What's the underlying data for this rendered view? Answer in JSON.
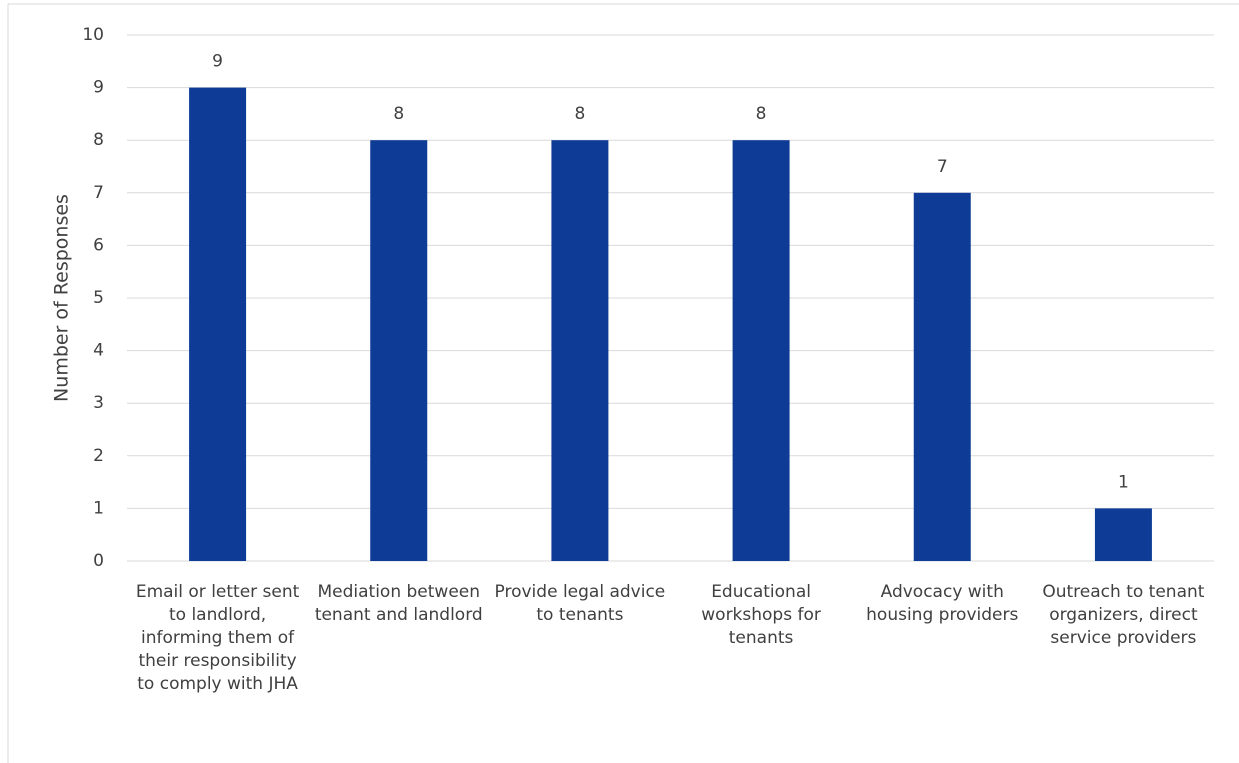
{
  "chart_data": {
    "type": "bar",
    "y_label": "Number of Responses",
    "categories": [
      "Email or letter sent to landlord, informing them of their responsibility to comply with JHA",
      "Mediation between tenant and landlord",
      "Provide legal advice to tenants",
      "Educational workshops for tenants",
      "Advocacy with housing providers",
      "Outreach to tenant organizers, direct service providers"
    ],
    "values": [
      9,
      8,
      8,
      8,
      7,
      1
    ],
    "color": "#0d3b96",
    "ylim": [
      0,
      10
    ],
    "yticks": [
      0,
      1,
      2,
      3,
      4,
      5,
      6,
      7,
      8,
      9,
      10
    ],
    "grid": true,
    "data_labels": true
  }
}
